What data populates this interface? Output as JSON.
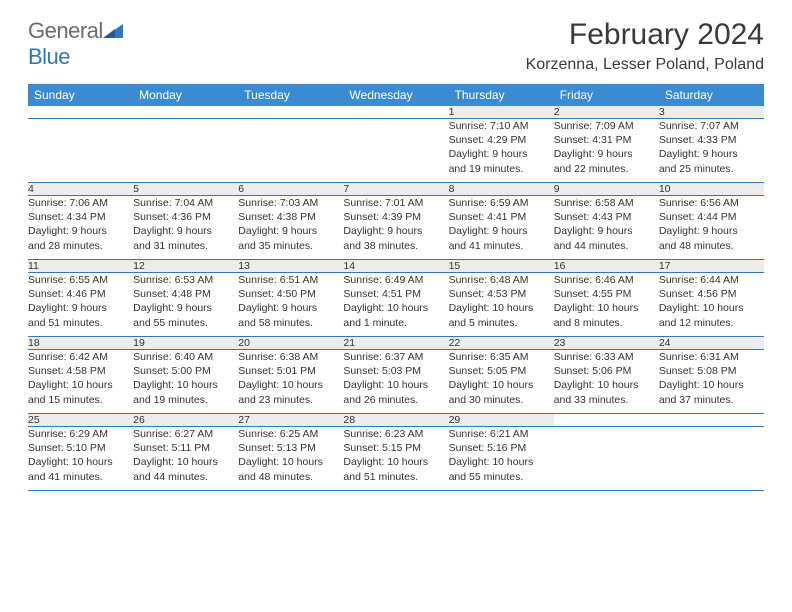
{
  "brand": {
    "part1": "General",
    "part2": "Blue"
  },
  "title": "February 2024",
  "location": "Korzenna, Lesser Poland, Poland",
  "colors": {
    "header_bg": "#3a8bcf",
    "header_text": "#ffffff",
    "daynum_bg": "#ececec",
    "border": "#2f78bd",
    "logo_gray": "#6b6b6b",
    "logo_blue": "#2f78bd"
  },
  "weekdays": [
    "Sunday",
    "Monday",
    "Tuesday",
    "Wednesday",
    "Thursday",
    "Friday",
    "Saturday"
  ],
  "weeks": [
    [
      null,
      null,
      null,
      null,
      {
        "n": "1",
        "sunrise": "7:10 AM",
        "sunset": "4:29 PM",
        "dl1": "Daylight: 9 hours",
        "dl2": "and 19 minutes."
      },
      {
        "n": "2",
        "sunrise": "7:09 AM",
        "sunset": "4:31 PM",
        "dl1": "Daylight: 9 hours",
        "dl2": "and 22 minutes."
      },
      {
        "n": "3",
        "sunrise": "7:07 AM",
        "sunset": "4:33 PM",
        "dl1": "Daylight: 9 hours",
        "dl2": "and 25 minutes."
      }
    ],
    [
      {
        "n": "4",
        "sunrise": "7:06 AM",
        "sunset": "4:34 PM",
        "dl1": "Daylight: 9 hours",
        "dl2": "and 28 minutes."
      },
      {
        "n": "5",
        "sunrise": "7:04 AM",
        "sunset": "4:36 PM",
        "dl1": "Daylight: 9 hours",
        "dl2": "and 31 minutes."
      },
      {
        "n": "6",
        "sunrise": "7:03 AM",
        "sunset": "4:38 PM",
        "dl1": "Daylight: 9 hours",
        "dl2": "and 35 minutes."
      },
      {
        "n": "7",
        "sunrise": "7:01 AM",
        "sunset": "4:39 PM",
        "dl1": "Daylight: 9 hours",
        "dl2": "and 38 minutes."
      },
      {
        "n": "8",
        "sunrise": "6:59 AM",
        "sunset": "4:41 PM",
        "dl1": "Daylight: 9 hours",
        "dl2": "and 41 minutes."
      },
      {
        "n": "9",
        "sunrise": "6:58 AM",
        "sunset": "4:43 PM",
        "dl1": "Daylight: 9 hours",
        "dl2": "and 44 minutes."
      },
      {
        "n": "10",
        "sunrise": "6:56 AM",
        "sunset": "4:44 PM",
        "dl1": "Daylight: 9 hours",
        "dl2": "and 48 minutes."
      }
    ],
    [
      {
        "n": "11",
        "sunrise": "6:55 AM",
        "sunset": "4:46 PM",
        "dl1": "Daylight: 9 hours",
        "dl2": "and 51 minutes."
      },
      {
        "n": "12",
        "sunrise": "6:53 AM",
        "sunset": "4:48 PM",
        "dl1": "Daylight: 9 hours",
        "dl2": "and 55 minutes."
      },
      {
        "n": "13",
        "sunrise": "6:51 AM",
        "sunset": "4:50 PM",
        "dl1": "Daylight: 9 hours",
        "dl2": "and 58 minutes."
      },
      {
        "n": "14",
        "sunrise": "6:49 AM",
        "sunset": "4:51 PM",
        "dl1": "Daylight: 10 hours",
        "dl2": "and 1 minute."
      },
      {
        "n": "15",
        "sunrise": "6:48 AM",
        "sunset": "4:53 PM",
        "dl1": "Daylight: 10 hours",
        "dl2": "and 5 minutes."
      },
      {
        "n": "16",
        "sunrise": "6:46 AM",
        "sunset": "4:55 PM",
        "dl1": "Daylight: 10 hours",
        "dl2": "and 8 minutes."
      },
      {
        "n": "17",
        "sunrise": "6:44 AM",
        "sunset": "4:56 PM",
        "dl1": "Daylight: 10 hours",
        "dl2": "and 12 minutes."
      }
    ],
    [
      {
        "n": "18",
        "sunrise": "6:42 AM",
        "sunset": "4:58 PM",
        "dl1": "Daylight: 10 hours",
        "dl2": "and 15 minutes."
      },
      {
        "n": "19",
        "sunrise": "6:40 AM",
        "sunset": "5:00 PM",
        "dl1": "Daylight: 10 hours",
        "dl2": "and 19 minutes."
      },
      {
        "n": "20",
        "sunrise": "6:38 AM",
        "sunset": "5:01 PM",
        "dl1": "Daylight: 10 hours",
        "dl2": "and 23 minutes."
      },
      {
        "n": "21",
        "sunrise": "6:37 AM",
        "sunset": "5:03 PM",
        "dl1": "Daylight: 10 hours",
        "dl2": "and 26 minutes."
      },
      {
        "n": "22",
        "sunrise": "6:35 AM",
        "sunset": "5:05 PM",
        "dl1": "Daylight: 10 hours",
        "dl2": "and 30 minutes."
      },
      {
        "n": "23",
        "sunrise": "6:33 AM",
        "sunset": "5:06 PM",
        "dl1": "Daylight: 10 hours",
        "dl2": "and 33 minutes."
      },
      {
        "n": "24",
        "sunrise": "6:31 AM",
        "sunset": "5:08 PM",
        "dl1": "Daylight: 10 hours",
        "dl2": "and 37 minutes."
      }
    ],
    [
      {
        "n": "25",
        "sunrise": "6:29 AM",
        "sunset": "5:10 PM",
        "dl1": "Daylight: 10 hours",
        "dl2": "and 41 minutes."
      },
      {
        "n": "26",
        "sunrise": "6:27 AM",
        "sunset": "5:11 PM",
        "dl1": "Daylight: 10 hours",
        "dl2": "and 44 minutes."
      },
      {
        "n": "27",
        "sunrise": "6:25 AM",
        "sunset": "5:13 PM",
        "dl1": "Daylight: 10 hours",
        "dl2": "and 48 minutes."
      },
      {
        "n": "28",
        "sunrise": "6:23 AM",
        "sunset": "5:15 PM",
        "dl1": "Daylight: 10 hours",
        "dl2": "and 51 minutes."
      },
      {
        "n": "29",
        "sunrise": "6:21 AM",
        "sunset": "5:16 PM",
        "dl1": "Daylight: 10 hours",
        "dl2": "and 55 minutes."
      },
      null,
      null
    ]
  ],
  "labels": {
    "sunrise_prefix": "Sunrise: ",
    "sunset_prefix": "Sunset: "
  }
}
